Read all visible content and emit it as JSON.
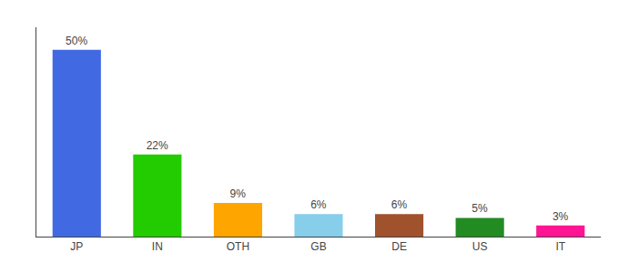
{
  "chart_data": {
    "type": "bar",
    "categories": [
      "JP",
      "IN",
      "OTH",
      "GB",
      "DE",
      "US",
      "IT"
    ],
    "values": [
      50,
      22,
      9,
      6,
      6,
      5,
      3
    ],
    "value_labels": [
      "50%",
      "22%",
      "9%",
      "6%",
      "6%",
      "5%",
      "3%"
    ],
    "colors": [
      "#4169E1",
      "#22CC00",
      "#FFA500",
      "#87CEEB",
      "#A0522D",
      "#228B22",
      "#FF1493"
    ],
    "ylim": [
      0,
      56
    ],
    "data_labels": true,
    "tick_labels": "x",
    "grid": false
  }
}
